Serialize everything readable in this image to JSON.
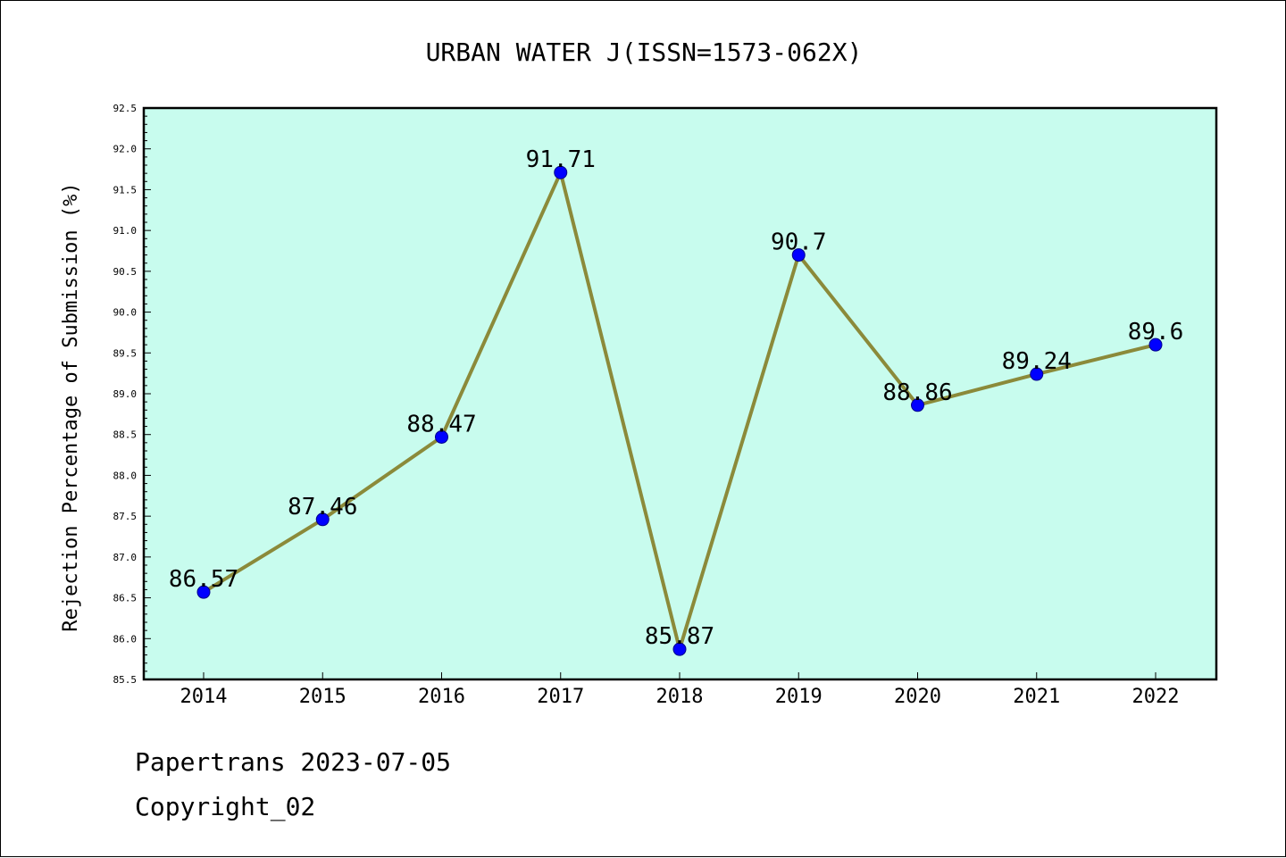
{
  "chart_data": {
    "type": "line",
    "title": "URBAN WATER J(ISSN=1573-062X)",
    "xlabel": "",
    "ylabel": "Rejection Percentage of Submission (%)",
    "categories": [
      "2014",
      "2015",
      "2016",
      "2017",
      "2018",
      "2019",
      "2020",
      "2021",
      "2022"
    ],
    "values": [
      86.57,
      87.46,
      88.47,
      91.71,
      85.87,
      90.7,
      88.86,
      89.24,
      89.6
    ],
    "data_labels": [
      "86.57",
      "87.46",
      "88.47",
      "91.71",
      "85.87",
      "90.7",
      "88.86",
      "89.24",
      "89.6"
    ],
    "ylim": [
      85.5,
      92.5
    ],
    "yticks": [
      "85.5",
      "86.0",
      "86.5",
      "87.0",
      "87.5",
      "88.0",
      "88.5",
      "89.0",
      "89.5",
      "90.0",
      "90.5",
      "91.0",
      "91.5",
      "92.0",
      "92.5"
    ],
    "grid": false,
    "legend": "none",
    "colors": {
      "plot_background": "#c8fcee",
      "line": "#8b8a3a",
      "marker": "#0000ff"
    }
  },
  "footer": {
    "line1": "Papertrans 2023-07-05",
    "line2": "Copyright_02"
  }
}
